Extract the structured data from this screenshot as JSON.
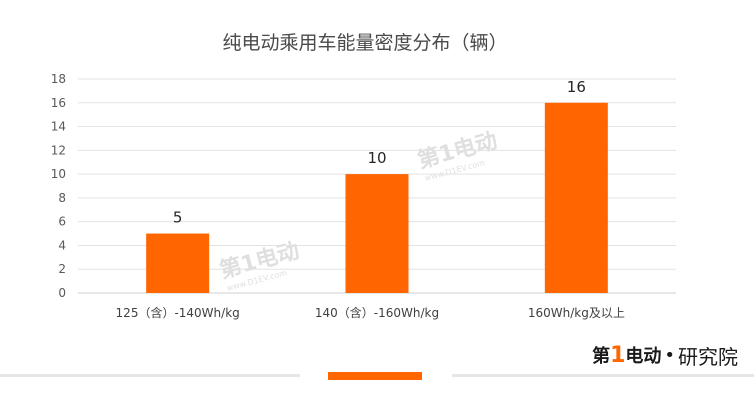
{
  "chart_data": {
    "type": "bar",
    "title": "纯电动乘用车能量密度分布（辆）",
    "categories": [
      "125（含）-140Wh/kg",
      "140（含）-160Wh/kg",
      "160Wh/kg及以上"
    ],
    "values": [
      5,
      10,
      16
    ],
    "ylim": [
      0,
      18
    ],
    "yticks": [
      0,
      2,
      4,
      6,
      8,
      10,
      12,
      14,
      16,
      18
    ],
    "xlabel": "",
    "ylabel": "",
    "grid": true,
    "bar_color": "#ff6600"
  },
  "watermark": {
    "logo_text": "第1电动",
    "url_text": "www.D1EV.com"
  },
  "branding": {
    "logo_prefix": "第",
    "logo_one": "1",
    "logo_suffix": "电动",
    "separator": "•",
    "unit": "研究院"
  },
  "colors": {
    "accent": "#ff6600",
    "divider": "#e6e6e6"
  }
}
